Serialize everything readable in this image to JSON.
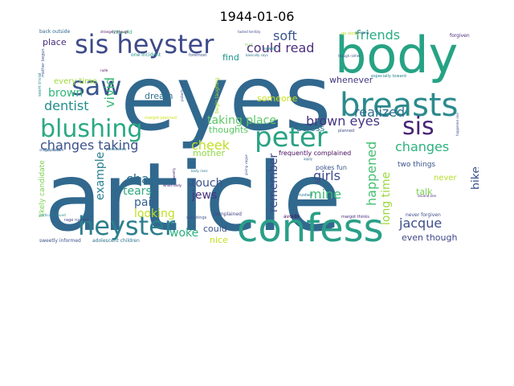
{
  "figure": {
    "title": "1944-01-06"
  },
  "cloud": {
    "words": [
      {
        "text": "article",
        "color": "#31688e"
      },
      {
        "text": "eyes",
        "color": "#31688e"
      },
      {
        "text": "body",
        "color": "#26a384"
      },
      {
        "text": "confess",
        "color": "#2a9f88"
      },
      {
        "text": "breasts",
        "color": "#2c8a8d"
      },
      {
        "text": "sis heyster",
        "color": "#3e4a89"
      },
      {
        "text": "blushing",
        "color": "#2ba982"
      },
      {
        "text": "heyster",
        "color": "#2c7f8e"
      },
      {
        "text": "saw",
        "color": "#3a568c"
      },
      {
        "text": "peter",
        "color": "#2aa384"
      },
      {
        "text": "sis",
        "color": "#482475"
      },
      {
        "text": "brown eyes",
        "color": "#453581"
      },
      {
        "text": "changes taking",
        "color": "#3b528b"
      },
      {
        "text": "taking place",
        "color": "#5cc863"
      },
      {
        "text": "realized",
        "color": "#2f6c8e"
      },
      {
        "text": "could read",
        "color": "#4b2f7e"
      },
      {
        "text": "friends",
        "color": "#27ad81"
      },
      {
        "text": "soft",
        "color": "#3a548c"
      },
      {
        "text": "dentist",
        "color": "#228d8d"
      },
      {
        "text": "brown",
        "color": "#31b57b"
      },
      {
        "text": "vivid",
        "color": "#3bbb75"
      },
      {
        "text": "cheek",
        "color": "#c0df25"
      },
      {
        "text": "changes",
        "color": "#2db27d"
      },
      {
        "text": "chair",
        "color": "#2e6e8e"
      },
      {
        "text": "tears",
        "color": "#2ea67f"
      },
      {
        "text": "touch",
        "color": "#3b528b"
      },
      {
        "text": "jews",
        "color": "#46327e"
      },
      {
        "text": "pain",
        "color": "#35608d"
      },
      {
        "text": "example",
        "color": "#277f8e"
      },
      {
        "text": "girls",
        "color": "#3e4c8a"
      },
      {
        "text": "happened",
        "color": "#44bf70"
      },
      {
        "text": "mine",
        "color": "#3bbb75"
      },
      {
        "text": "jacque",
        "color": "#3d4d8a"
      },
      {
        "text": "remember",
        "color": "#3e4a89"
      },
      {
        "text": "woke",
        "color": "#2ab07f"
      },
      {
        "text": "looking",
        "color": "#c2df23"
      },
      {
        "text": "bike",
        "color": "#3b528b"
      },
      {
        "text": "long time",
        "color": "#9bd93c"
      },
      {
        "text": "even though",
        "color": "#3f4788"
      },
      {
        "text": "talk",
        "color": "#7ad151"
      },
      {
        "text": "across",
        "color": "#2a788e"
      },
      {
        "text": "dream",
        "color": "#2d708e"
      },
      {
        "text": "thoughts",
        "color": "#5ac864"
      },
      {
        "text": "someone",
        "color": "#c8e020"
      },
      {
        "text": "mother",
        "color": "#90d743"
      },
      {
        "text": "could",
        "color": "#3b528b"
      },
      {
        "text": "nice",
        "color": "#c5e021"
      },
      {
        "text": "find",
        "color": "#1f958b"
      },
      {
        "text": "whenever",
        "color": "#453781"
      },
      {
        "text": "every time",
        "color": "#9dd93b"
      },
      {
        "text": "place",
        "color": "#472c7a"
      },
      {
        "text": "never",
        "color": "#b5de2b"
      },
      {
        "text": "two things",
        "color": "#3b528b"
      },
      {
        "text": "likely candidate",
        "color": "#7ad151"
      },
      {
        "text": "frequently complained",
        "color": "#460b5e"
      },
      {
        "text": "pokes fun",
        "color": "#3a548c"
      },
      {
        "text": "adolescent children",
        "color": "#2c728e"
      },
      {
        "text": "sweetly informed",
        "color": "#3b528b"
      },
      {
        "text": "never forgiven",
        "color": "#3e4989"
      },
      {
        "text": "back outside",
        "color": "#31688e"
      },
      {
        "text": "little old",
        "color": "#35b779"
      },
      {
        "text": "one incident",
        "color": "#228c8d"
      },
      {
        "text": "foremost",
        "color": "#3b528b"
      },
      {
        "text": "begin laughing",
        "color": "#addc30"
      },
      {
        "text": "forgiven",
        "color": "#482878"
      },
      {
        "text": "go along",
        "color": "#bddf26"
      },
      {
        "text": "margot planned",
        "color": "#d2e21b"
      },
      {
        "text": "especially toward",
        "color": "#26828e"
      },
      {
        "text": "complained",
        "color": "#414487"
      },
      {
        "text": "avoids",
        "color": "#440154"
      },
      {
        "text": "rushed",
        "color": "#2a788e"
      },
      {
        "text": "margot thinks",
        "color": "#472a7a"
      },
      {
        "text": "still stings",
        "color": "#3b528b"
      },
      {
        "text": "planned",
        "color": "#3e4989"
      },
      {
        "text": "sawed",
        "color": "#25848e"
      },
      {
        "text": "strangely enough",
        "color": "#440154"
      },
      {
        "text": "mother begun",
        "color": "#3b528b"
      },
      {
        "text": "seem trivial",
        "color": "#23898e"
      },
      {
        "text": "rage rushed",
        "color": "#3f4788"
      },
      {
        "text": "possesses",
        "color": "#2c728e"
      },
      {
        "text": "stings pleasure",
        "color": "#3b528b"
      },
      {
        "text": "particular sound",
        "color": "#24868e"
      },
      {
        "text": "trust",
        "color": "#7ad151"
      },
      {
        "text": "puberty girls",
        "color": "#3b528b"
      },
      {
        "text": "whole body",
        "color": "#482475"
      },
      {
        "text": "body rises",
        "color": "#2a788e"
      },
      {
        "text": "still",
        "color": "#3b528b"
      },
      {
        "text": "sweetly",
        "color": "#482878"
      },
      {
        "text": "apply",
        "color": "#31688e"
      },
      {
        "text": "happened one",
        "color": "#3b528b"
      },
      {
        "text": "bike home",
        "color": "#2c728e"
      },
      {
        "text": "second one",
        "color": "#482475"
      },
      {
        "text": "though rather",
        "color": "#3b528b"
      },
      {
        "text": "basically says",
        "color": "#2c728e"
      },
      {
        "text": "tasted terribly",
        "color": "#3e4989"
      },
      {
        "text": "go along",
        "color": "#3b528b"
      },
      {
        "text": "rude",
        "color": "#440154"
      },
      {
        "text": "giving vague",
        "color": "#3b528b"
      }
    ]
  }
}
